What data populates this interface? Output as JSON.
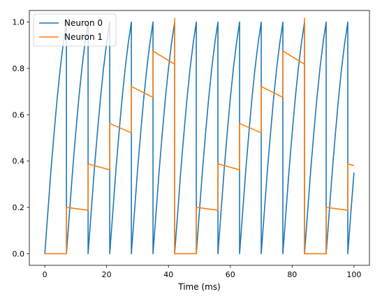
{
  "chart_data": {
    "type": "line",
    "title": "",
    "xlabel": "Time (ms)",
    "ylabel": "",
    "xlim": [
      -5,
      105
    ],
    "ylim": [
      -0.05,
      1.05
    ],
    "x_ticks": [
      0,
      20,
      40,
      60,
      80,
      100
    ],
    "x_tick_labels": [
      "0",
      "20",
      "40",
      "60",
      "80",
      "100"
    ],
    "y_ticks": [
      0.0,
      0.2,
      0.4,
      0.6,
      0.8,
      1.0
    ],
    "y_tick_labels": [
      "0.0",
      "0.2",
      "0.4",
      "0.6",
      "0.8",
      "1.0"
    ],
    "grid": false,
    "legend_position": "top-left",
    "series": [
      {
        "name": "Neuron 0",
        "color": "#1f77b4",
        "segments": [
          {
            "x": [
              0,
              1,
              2,
              3,
              4,
              5,
              6,
              7
            ],
            "y": [
              0.0,
              0.18,
              0.36,
              0.52,
              0.67,
              0.8,
              0.91,
              1.0
            ]
          },
          {
            "x": [
              7,
              8,
              9,
              10,
              11,
              12,
              13,
              14
            ],
            "y": [
              0.0,
              0.18,
              0.36,
              0.52,
              0.67,
              0.8,
              0.91,
              1.0
            ]
          },
          {
            "x": [
              14,
              15,
              16,
              17,
              18,
              19,
              20,
              21
            ],
            "y": [
              0.0,
              0.18,
              0.36,
              0.52,
              0.67,
              0.8,
              0.91,
              1.0
            ]
          },
          {
            "x": [
              21,
              22,
              23,
              24,
              25,
              26,
              27,
              28
            ],
            "y": [
              0.0,
              0.18,
              0.36,
              0.52,
              0.67,
              0.8,
              0.91,
              1.0
            ]
          },
          {
            "x": [
              28,
              29,
              30,
              31,
              32,
              33,
              34,
              35
            ],
            "y": [
              0.0,
              0.18,
              0.36,
              0.52,
              0.67,
              0.8,
              0.91,
              1.0
            ]
          },
          {
            "x": [
              35,
              36,
              37,
              38,
              39,
              40,
              41,
              42
            ],
            "y": [
              0.0,
              0.18,
              0.36,
              0.52,
              0.67,
              0.8,
              0.91,
              1.0
            ]
          },
          {
            "x": [
              42,
              43,
              44,
              45,
              46,
              47,
              48,
              49
            ],
            "y": [
              0.0,
              0.18,
              0.36,
              0.52,
              0.67,
              0.8,
              0.91,
              1.0
            ]
          },
          {
            "x": [
              49,
              50,
              51,
              52,
              53,
              54,
              55,
              56
            ],
            "y": [
              0.0,
              0.18,
              0.36,
              0.52,
              0.67,
              0.8,
              0.91,
              1.0
            ]
          },
          {
            "x": [
              56,
              57,
              58,
              59,
              60,
              61,
              62,
              63
            ],
            "y": [
              0.0,
              0.18,
              0.36,
              0.52,
              0.67,
              0.8,
              0.91,
              1.0
            ]
          },
          {
            "x": [
              63,
              64,
              65,
              66,
              67,
              68,
              69,
              70
            ],
            "y": [
              0.0,
              0.18,
              0.36,
              0.52,
              0.67,
              0.8,
              0.91,
              1.0
            ]
          },
          {
            "x": [
              70,
              71,
              72,
              73,
              74,
              75,
              76,
              77
            ],
            "y": [
              0.0,
              0.18,
              0.36,
              0.52,
              0.67,
              0.8,
              0.91,
              1.0
            ]
          },
          {
            "x": [
              77,
              78,
              79,
              80,
              81,
              82,
              83,
              84
            ],
            "y": [
              0.0,
              0.18,
              0.36,
              0.52,
              0.67,
              0.8,
              0.91,
              1.0
            ]
          },
          {
            "x": [
              84,
              85,
              86,
              87,
              88,
              89,
              90,
              91
            ],
            "y": [
              0.0,
              0.18,
              0.36,
              0.52,
              0.67,
              0.8,
              0.91,
              1.0
            ]
          },
          {
            "x": [
              91,
              92,
              93,
              94,
              95,
              96,
              97,
              98
            ],
            "y": [
              0.0,
              0.18,
              0.36,
              0.52,
              0.67,
              0.8,
              0.91,
              1.0
            ]
          },
          {
            "x": [
              98,
              99,
              100
            ],
            "y": [
              0.0,
              0.18,
              0.35
            ]
          }
        ]
      },
      {
        "name": "Neuron 1",
        "color": "#ff7f0e",
        "x": [
          0,
          7,
          7,
          14,
          14,
          21,
          21,
          28,
          28,
          35,
          35,
          42,
          42,
          42,
          49,
          49,
          56,
          56,
          63,
          63,
          70,
          70,
          77,
          77,
          84,
          84,
          84,
          91,
          91,
          98,
          98,
          100
        ],
        "y": [
          0.0,
          0.0,
          0.2,
          0.188,
          0.388,
          0.362,
          0.562,
          0.522,
          0.722,
          0.675,
          0.875,
          0.818,
          1.018,
          0.0,
          0.0,
          0.2,
          0.188,
          0.388,
          0.362,
          0.562,
          0.522,
          0.722,
          0.675,
          0.875,
          0.818,
          1.018,
          0.0,
          0.0,
          0.2,
          0.188,
          0.388,
          0.38
        ]
      }
    ]
  }
}
